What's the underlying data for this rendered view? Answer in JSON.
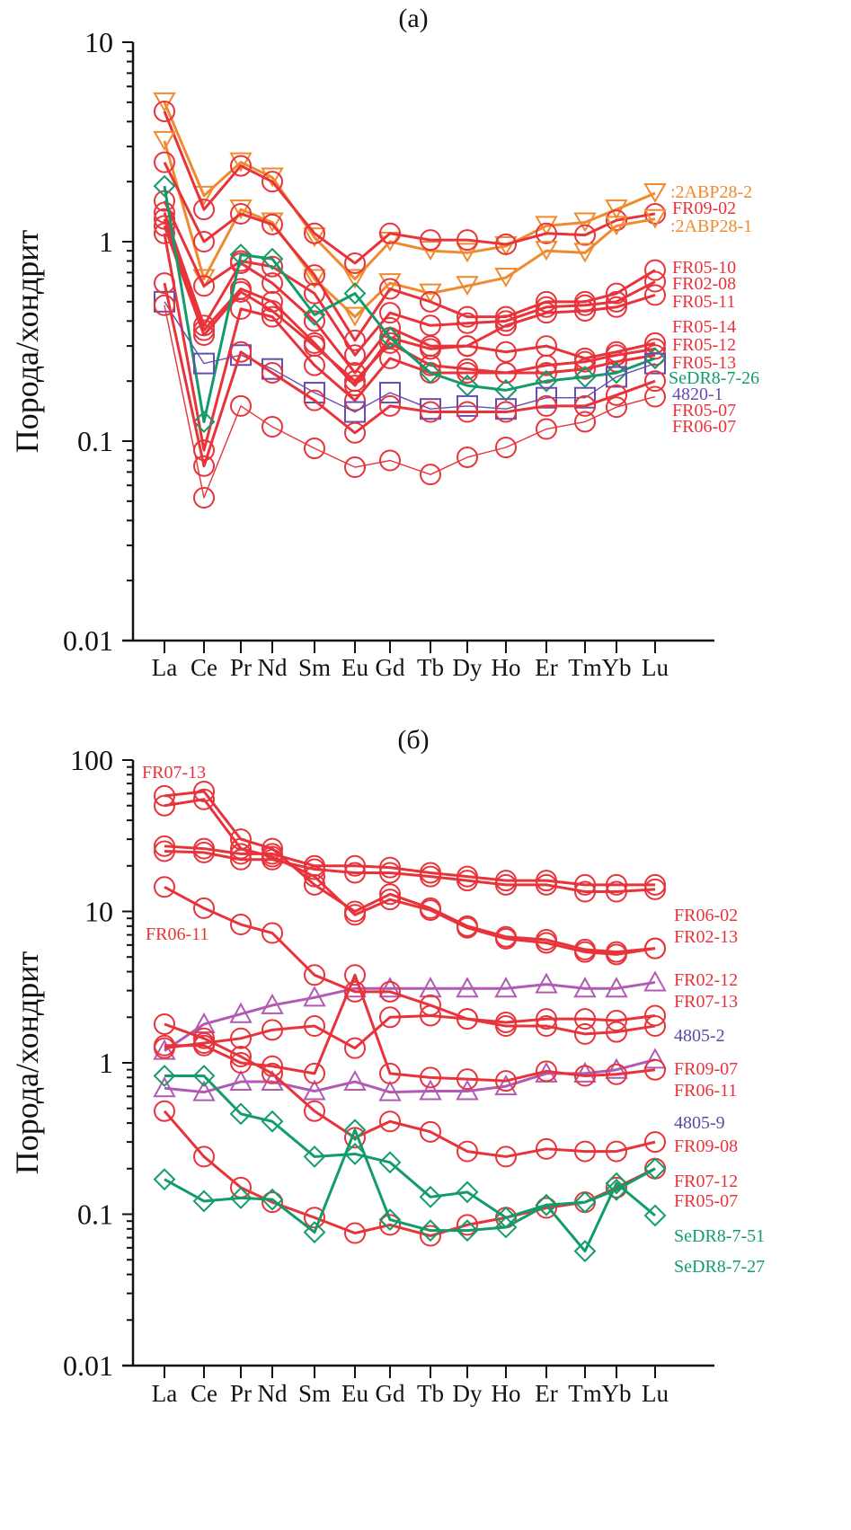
{
  "chart_data": [
    {
      "type": "line",
      "title": "(a)",
      "xlabel": "",
      "ylabel": "Порода/хондрит",
      "yscale": "log",
      "ylim": [
        0.01,
        10
      ],
      "ytick_labels": [
        "10",
        "1",
        "0.1",
        "0.01"
      ],
      "yticks": [
        10,
        1,
        0.1,
        0.01
      ],
      "categories": [
        "La",
        "Ce",
        "Pr",
        "Nd",
        "Sm",
        "Eu",
        "Gd",
        "Tb",
        "Dy",
        "Ho",
        "Er",
        "Tm",
        "Yb",
        "Lu"
      ],
      "grid": false,
      "legend": "inline labels at right end of series",
      "series": [
        {
          "name": "2ABP28-2",
          "color": "#f08a2e",
          "marker": "triangle-down",
          "weight": "heavy",
          "values": [
            5.0,
            1.7,
            2.5,
            2.1,
            1.05,
            0.65,
            1.0,
            0.9,
            0.88,
            0.95,
            1.2,
            1.25,
            1.45,
            1.75
          ]
        },
        {
          "name": "FR09-02",
          "color": "#e8333a",
          "marker": "circle",
          "weight": "heavy",
          "values": [
            4.5,
            1.45,
            2.4,
            2.0,
            1.1,
            0.78,
            1.1,
            1.02,
            1.02,
            0.97,
            1.1,
            1.08,
            1.28,
            1.38
          ]
        },
        {
          "name": "2ABP28-1",
          "color": "#f08a2e",
          "marker": "triangle-down",
          "weight": "heavy",
          "values": [
            3.2,
            0.65,
            1.45,
            1.25,
            0.65,
            0.42,
            0.62,
            0.55,
            0.6,
            0.66,
            0.9,
            0.88,
            1.2,
            1.3
          ]
        },
        {
          "name": "FR05-10",
          "color": "#e8333a",
          "marker": "circle",
          "weight": "heavy",
          "values": [
            2.5,
            1.0,
            1.38,
            1.22,
            0.68,
            0.32,
            0.58,
            0.5,
            0.42,
            0.42,
            0.5,
            0.5,
            0.55,
            0.72
          ]
        },
        {
          "name": "FR02-08",
          "color": "#e8333a",
          "marker": "circle",
          "weight": "heavy",
          "values": [
            1.6,
            0.6,
            0.8,
            0.75,
            0.55,
            0.27,
            0.44,
            0.38,
            0.39,
            0.4,
            0.47,
            0.48,
            0.5,
            0.63
          ]
        },
        {
          "name": "FR05-11",
          "color": "#e8333a",
          "marker": "circle",
          "weight": "heavy",
          "values": [
            1.4,
            0.38,
            0.78,
            0.62,
            0.4,
            0.22,
            0.37,
            0.3,
            0.3,
            0.38,
            0.44,
            0.45,
            0.47,
            0.54
          ]
        },
        {
          "name": "FR05-14",
          "color": "#e8333a",
          "marker": "circle",
          "weight": "heavy",
          "values": [
            1.3,
            0.36,
            0.58,
            0.5,
            0.31,
            0.19,
            0.33,
            0.29,
            0.3,
            0.28,
            0.3,
            0.26,
            0.28,
            0.31
          ]
        },
        {
          "name": "FR05-12",
          "color": "#e8333a",
          "marker": "circle",
          "weight": "heavy",
          "values": [
            1.2,
            0.34,
            0.56,
            0.45,
            0.3,
            0.2,
            0.31,
            0.24,
            0.23,
            0.22,
            0.24,
            0.25,
            0.27,
            0.29
          ]
        },
        {
          "name": "FR05-13",
          "color": "#e8333a",
          "marker": "circle",
          "weight": "heavy",
          "values": [
            1.1,
            0.09,
            0.46,
            0.42,
            0.24,
            0.16,
            0.26,
            0.22,
            0.22,
            0.22,
            0.22,
            0.23,
            0.25,
            0.27
          ]
        },
        {
          "name": "SeDR8-7-26",
          "color": "#129c6a",
          "marker": "diamond",
          "weight": "heavy",
          "values": [
            1.9,
            0.125,
            0.86,
            0.82,
            0.43,
            0.55,
            0.33,
            0.22,
            0.19,
            0.18,
            0.2,
            0.21,
            0.22,
            0.26
          ]
        },
        {
          "name": "4820-1",
          "color": "#6a4bb0",
          "marker": "square",
          "weight": "thin",
          "values": [
            0.5,
            0.245,
            0.27,
            0.23,
            0.175,
            0.14,
            0.175,
            0.145,
            0.15,
            0.145,
            0.165,
            0.165,
            0.21,
            0.245
          ]
        },
        {
          "name": "FR05-07",
          "color": "#e8333a",
          "marker": "circle",
          "weight": "heavy",
          "values": [
            0.62,
            0.075,
            0.28,
            0.22,
            0.16,
            0.11,
            0.15,
            0.14,
            0.14,
            0.14,
            0.15,
            0.15,
            0.17,
            0.2
          ]
        },
        {
          "name": "FR06-07",
          "color": "#e8333a",
          "marker": "circle",
          "weight": "thin",
          "values": [
            0.48,
            0.052,
            0.15,
            0.118,
            0.092,
            0.074,
            0.08,
            0.068,
            0.083,
            0.093,
            0.115,
            0.125,
            0.148,
            0.167
          ]
        }
      ]
    },
    {
      "type": "line",
      "title": "(б)",
      "xlabel": "",
      "ylabel": "Порода/хондрит",
      "yscale": "log",
      "ylim": [
        0.01,
        100
      ],
      "ytick_labels": [
        "100",
        "10",
        "1",
        "0.1",
        "0.01"
      ],
      "yticks": [
        100,
        10,
        1,
        0.1,
        0.01
      ],
      "categories": [
        "La",
        "Ce",
        "Pr",
        "Nd",
        "Sm",
        "Eu",
        "Gd",
        "Tb",
        "Dy",
        "Ho",
        "Er",
        "Tm",
        "Yb",
        "Lu"
      ],
      "grid": false,
      "legend": "inline labels at right end of series, plus labels FR07-13 and FR06-11 at top-left",
      "extra_labels": [
        {
          "text": "FR07-13",
          "color": "#e8333a",
          "anchor": "top-left"
        },
        {
          "text": "FR06-11",
          "color": "#e8333a",
          "anchor": "left"
        }
      ],
      "series": [
        {
          "name": "FR06-02",
          "color": "#e8333a",
          "marker": "circle",
          "weight": "heavy",
          "values": [
            27,
            26,
            24,
            24,
            20,
            20,
            19.5,
            18,
            17,
            16,
            16,
            15,
            15,
            15
          ]
        },
        {
          "name": "FR02-13",
          "color": "#e8333a",
          "marker": "circle",
          "weight": "heavy",
          "values": [
            25,
            24.5,
            22,
            22,
            19,
            18,
            18,
            17,
            16,
            15,
            15,
            13.5,
            13.5,
            14
          ]
        },
        {
          "name": "FR02-12",
          "color": "#e8333a",
          "marker": "circle",
          "weight": "heavy",
          "values": [
            58,
            62,
            30,
            26,
            15,
            10,
            13,
            10.5,
            8,
            6.8,
            6.5,
            5.6,
            5.4,
            5.7
          ]
        },
        {
          "name": "FR07-13",
          "color": "#e8333a",
          "marker": "circle",
          "weight": "heavy",
          "values": [
            50,
            55,
            26,
            23,
            17,
            9.5,
            12,
            10.2,
            7.8,
            6.6,
            6.2,
            5.4,
            5.2,
            5.7
          ]
        },
        {
          "name": "4805-2",
          "color": "#b05ab4",
          "marker": "triangle-up",
          "weight": "heavy",
          "values": [
            1.2,
            1.8,
            2.1,
            2.4,
            2.7,
            3.1,
            3.1,
            3.1,
            3.1,
            3.1,
            3.3,
            3.1,
            3.1,
            3.4
          ]
        },
        {
          "name": "FR09-07",
          "color": "#e8333a",
          "marker": "circle",
          "weight": "heavy",
          "values": [
            1.25,
            1.35,
            1.45,
            1.65,
            1.75,
            1.25,
            2.0,
            2.05,
            1.95,
            1.85,
            1.95,
            1.95,
            1.9,
            2.05
          ]
        },
        {
          "name": "FR06-11",
          "color": "#e8333a",
          "marker": "circle",
          "weight": "heavy",
          "values": [
            14.5,
            10.5,
            8.2,
            7.2,
            3.8,
            2.95,
            2.95,
            2.4,
            1.95,
            1.75,
            1.75,
            1.55,
            1.6,
            1.75
          ]
        },
        {
          "name": "4805-9",
          "color": "#b05ab4",
          "marker": "triangle-up",
          "weight": "heavy",
          "values": [
            0.68,
            0.64,
            0.75,
            0.75,
            0.65,
            0.75,
            0.64,
            0.65,
            0.65,
            0.7,
            0.85,
            0.85,
            0.9,
            1.05
          ]
        },
        {
          "name": "FR09-08",
          "color": "#e8333a",
          "marker": "circle",
          "weight": "heavy",
          "values": [
            1.3,
            1.3,
            1.0,
            0.95,
            0.85,
            3.8,
            0.85,
            0.8,
            0.78,
            0.76,
            0.88,
            0.82,
            0.84,
            0.9
          ]
        },
        {
          "name": "FR07-12",
          "color": "#e8333a",
          "marker": "circle",
          "weight": "heavy",
          "values": [
            1.8,
            1.45,
            1.1,
            0.85,
            0.48,
            0.32,
            0.41,
            0.35,
            0.26,
            0.24,
            0.27,
            0.26,
            0.26,
            0.3
          ]
        },
        {
          "name": "FR05-07",
          "color": "#e8333a",
          "marker": "circle",
          "weight": "heavy",
          "values": [
            0.48,
            0.24,
            0.15,
            0.12,
            0.095,
            0.075,
            0.085,
            0.072,
            0.085,
            0.095,
            0.11,
            0.12,
            0.15,
            0.2
          ]
        },
        {
          "name": "SeDR8-7-51",
          "color": "#129c6a",
          "marker": "diamond",
          "weight": "heavy",
          "values": [
            0.82,
            0.82,
            0.46,
            0.41,
            0.24,
            0.25,
            0.22,
            0.13,
            0.14,
            0.095,
            0.115,
            0.12,
            0.145,
            0.2
          ]
        },
        {
          "name": "SeDR8-7-27",
          "color": "#129c6a",
          "marker": "diamond",
          "weight": "heavy",
          "values": [
            0.17,
            0.122,
            0.128,
            0.125,
            0.076,
            0.36,
            0.092,
            0.078,
            0.078,
            0.082,
            0.115,
            0.057,
            0.16,
            0.098
          ]
        }
      ]
    }
  ]
}
